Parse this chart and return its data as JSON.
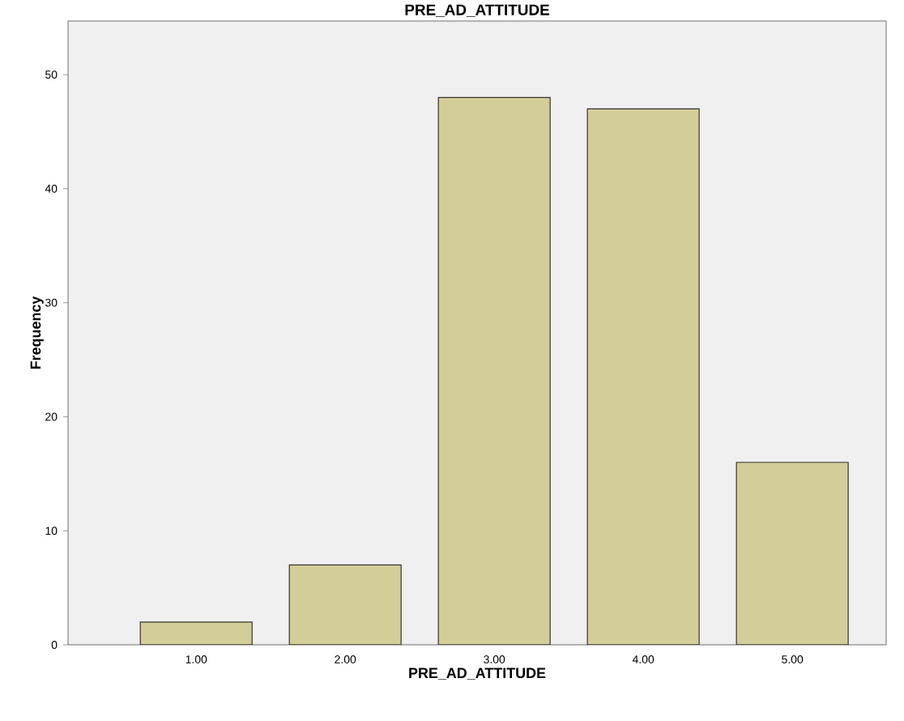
{
  "chart_data": {
    "type": "bar",
    "title": "PRE_AD_ATTITUDE",
    "xlabel": "PRE_AD_ATTITUDE",
    "ylabel": "Frequency",
    "categories": [
      "1.00",
      "2.00",
      "3.00",
      "4.00",
      "5.00"
    ],
    "values": [
      2,
      7,
      48,
      47,
      16
    ],
    "color": "#d3ce97",
    "ylim": [
      0,
      54.7
    ],
    "yticks": [
      0,
      10,
      20,
      30,
      40,
      50
    ],
    "grid": false
  }
}
